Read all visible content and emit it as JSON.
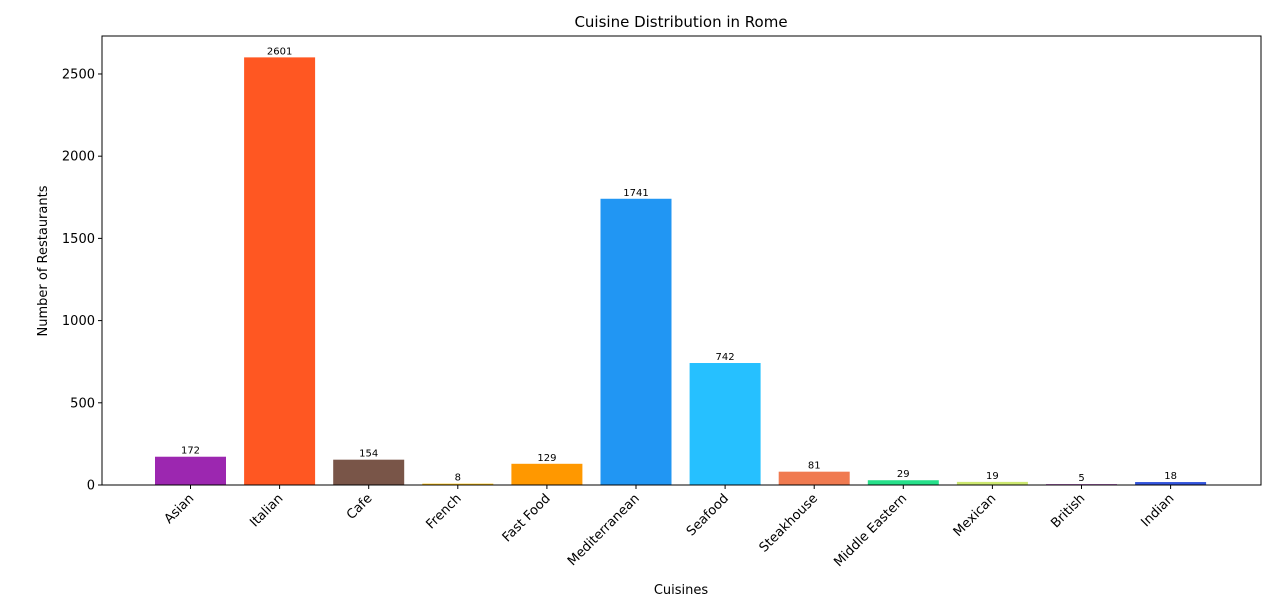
{
  "chart_data": {
    "type": "bar",
    "title": "Cuisine Distribution in Rome",
    "xlabel": "Cuisines",
    "ylabel": "Number of Restaurants",
    "ylim": [
      0,
      2731
    ],
    "yticks": [
      0,
      500,
      1000,
      1500,
      2000,
      2500
    ],
    "grid": false,
    "categories": [
      "Asian",
      "Italian",
      "Cafe",
      "French",
      "Fast Food",
      "Mediterranean",
      "Seafood",
      "Steakhouse",
      "Middle Eastern",
      "Mexican",
      "British",
      "Indian"
    ],
    "values": [
      172,
      2601,
      154,
      8,
      129,
      1741,
      742,
      81,
      29,
      19,
      5,
      18
    ],
    "colors": [
      "#9c27b0",
      "#ff5722",
      "#795548",
      "#ffc107",
      "#ff9800",
      "#2196f3",
      "#26c0ff",
      "#f07a50",
      "#26e08a",
      "#cde870",
      "#9c27b0",
      "#3355dd"
    ]
  }
}
